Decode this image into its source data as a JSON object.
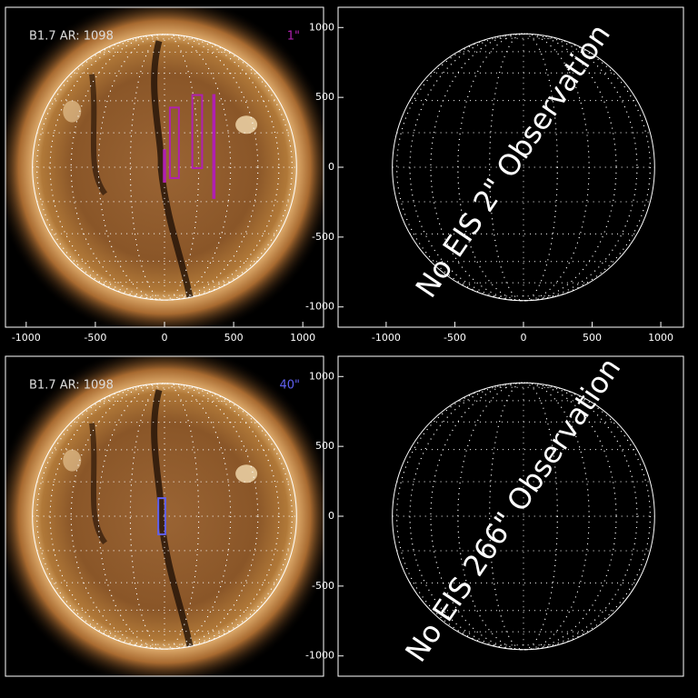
{
  "chart_data": [
    {
      "type": "map",
      "label": "B1.7 AR: 1098",
      "slit": "1\"",
      "slit_color": "#b020b0",
      "xlim": [
        -1150,
        1150
      ],
      "ylim": [
        -1150,
        1150
      ],
      "xticks": [
        -1000,
        -500,
        0,
        500,
        1000
      ],
      "boxes": [
        {
          "x": [
            -5,
            5
          ],
          "y": [
            -104,
            123
          ]
        },
        {
          "x": [
            39,
            104
          ],
          "y": [
            -78,
            429
          ]
        },
        {
          "x": [
            201,
            272
          ],
          "y": [
            -6,
            519
          ]
        },
        {
          "x": [
            352,
            362
          ],
          "y": [
            -221,
            519
          ]
        }
      ]
    },
    {
      "type": "empty",
      "message": "No EIS 2\" Observation",
      "xlim": [
        -1350,
        1165
      ],
      "ylim": [
        -1145,
        1145
      ],
      "xticks": [
        -1000,
        -500,
        0,
        500,
        1000
      ],
      "yticks": [
        -1000,
        -500,
        0,
        500,
        1000
      ]
    },
    {
      "type": "map",
      "label": "B1.7 AR: 1098",
      "slit": "40\"",
      "slit_color": "#6060f0",
      "xlim": [
        -1150,
        1150
      ],
      "ylim": [
        -1150,
        1150
      ],
      "boxes": [
        {
          "x": [
            -45,
            6
          ],
          "y": [
            -130,
            130
          ]
        }
      ]
    },
    {
      "type": "empty",
      "message": "No EIS 266\" Observation",
      "xlim": [
        -1350,
        1165
      ],
      "ylim": [
        -1145,
        1145
      ],
      "yticks": [
        -1000,
        -500,
        0,
        500,
        1000
      ]
    }
  ]
}
